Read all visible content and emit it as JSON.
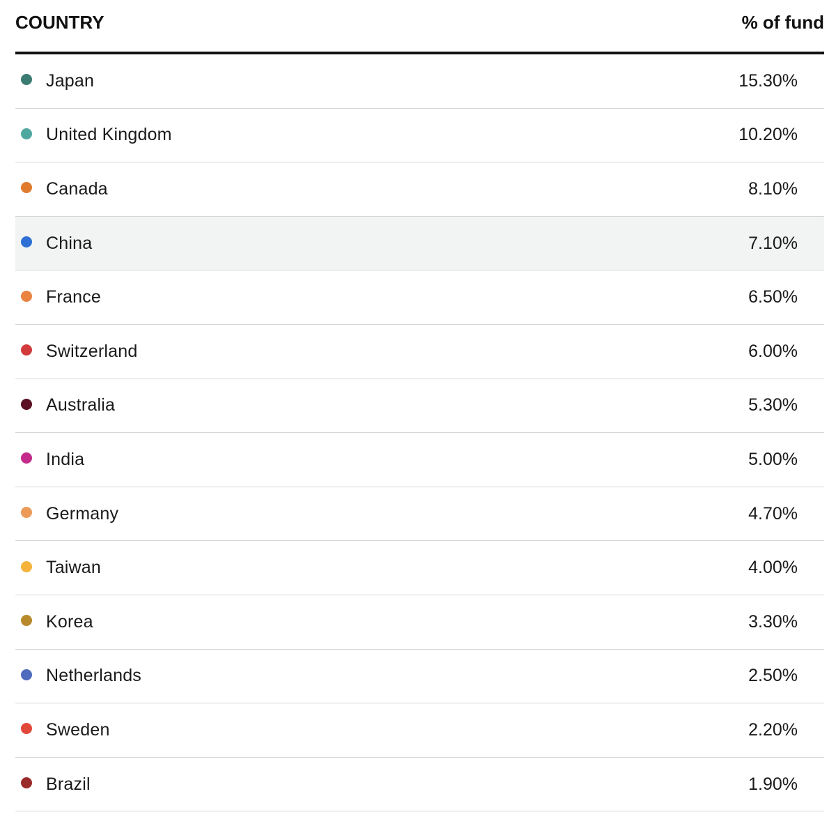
{
  "table": {
    "header": {
      "country_label": "COUNTRY",
      "pct_label": "% of fund"
    },
    "rows": [
      {
        "country": "Japan",
        "pct": "15.30%",
        "color": "#3b7b72"
      },
      {
        "country": "United Kingdom",
        "pct": "10.20%",
        "color": "#4ea8a0"
      },
      {
        "country": "Canada",
        "pct": "8.10%",
        "color": "#e07b2e"
      },
      {
        "country": "China",
        "pct": "7.10%",
        "color": "#2e6fd6",
        "highlighted": true
      },
      {
        "country": "France",
        "pct": "6.50%",
        "color": "#ea8240"
      },
      {
        "country": "Switzerland",
        "pct": "6.00%",
        "color": "#d23b3b"
      },
      {
        "country": "Australia",
        "pct": "5.30%",
        "color": "#5a0f22"
      },
      {
        "country": "India",
        "pct": "5.00%",
        "color": "#c42a8a"
      },
      {
        "country": "Germany",
        "pct": "4.70%",
        "color": "#ec9a58"
      },
      {
        "country": "Taiwan",
        "pct": "4.00%",
        "color": "#f5b33c"
      },
      {
        "country": "Korea",
        "pct": "3.30%",
        "color": "#b98a2c"
      },
      {
        "country": "Netherlands",
        "pct": "2.50%",
        "color": "#4e6bbd"
      },
      {
        "country": "Sweden",
        "pct": "2.20%",
        "color": "#e2483a"
      },
      {
        "country": "Brazil",
        "pct": "1.90%",
        "color": "#9b2a2a"
      }
    ]
  }
}
